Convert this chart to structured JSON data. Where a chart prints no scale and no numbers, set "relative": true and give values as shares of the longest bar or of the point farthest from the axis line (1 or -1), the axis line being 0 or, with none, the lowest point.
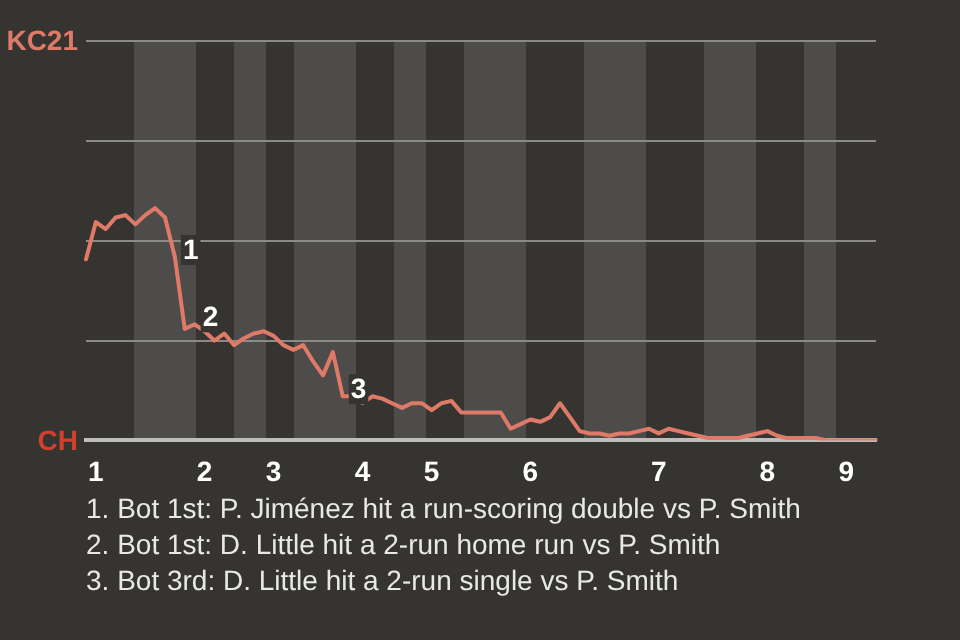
{
  "chart_data": {
    "type": "line",
    "relative": true,
    "categories": [
      null,
      "1",
      null,
      null,
      null,
      null,
      null,
      null,
      null,
      null,
      null,
      null,
      "2",
      null,
      null,
      null,
      null,
      null,
      null,
      "3",
      null,
      null,
      null,
      null,
      null,
      null,
      null,
      null,
      "4",
      null,
      null,
      null,
      null,
      null,
      null,
      "5",
      null,
      null,
      null,
      null,
      null,
      null,
      null,
      null,
      null,
      "6",
      null,
      null,
      null,
      null,
      null,
      null,
      null,
      null,
      null,
      null,
      null,
      null,
      "7",
      null,
      null,
      null,
      null,
      null,
      null,
      null,
      null,
      null,
      null,
      "8",
      null,
      null,
      null,
      null,
      null,
      null,
      null,
      "9",
      null,
      null,
      null
    ],
    "series": [
      {
        "color": "#e07a68",
        "values": [
          0.78,
          0.94,
          0.91,
          0.96,
          0.97,
          0.93,
          0.97,
          1,
          0.96,
          0.79,
          0.48,
          0.5,
          0.47,
          0.43,
          0.46,
          0.41,
          0.44,
          0.46,
          0.47,
          0.45,
          0.41,
          0.39,
          0.41,
          0.34,
          0.28,
          0.38,
          0.19,
          0.19,
          0.16,
          0.19,
          0.18,
          0.16,
          0.14,
          0.16,
          0.16,
          0.13,
          0.16,
          0.17,
          0.12,
          0.12,
          0.12,
          0.12,
          0.12,
          0.05,
          0.07,
          0.09,
          0.08,
          0.1,
          0.16,
          0.1,
          0.04,
          0.03,
          0.03,
          0.02,
          0.03,
          0.03,
          0.04,
          0.05,
          0.03,
          0.05,
          0.04,
          0.03,
          0.02,
          0.01,
          0.01,
          0.01,
          0.01,
          0.02,
          0.03,
          0.04,
          0.02,
          0.01,
          0.01,
          0.01,
          0.01,
          0,
          0,
          0,
          0,
          0,
          0
        ]
      }
    ],
    "ref_lines": [
      {
        "axis": "y",
        "value": 0.431,
        "color": "#8a8a88"
      },
      {
        "axis": "y",
        "value": 0.862,
        "color": "#8a8a88"
      },
      {
        "axis": "y",
        "value": 1.293,
        "color": "#8a8a88"
      },
      {
        "axis": "y",
        "value": 1.724,
        "color": "#8a8a88"
      }
    ],
    "marker": "none",
    "line_style": "solid",
    "legend": false,
    "annotations": [
      "KC21",
      "CH",
      "1",
      "2",
      "3",
      "1. Bot 1st: P. Jiménez hit a run-scoring double vs P. Smith",
      "2. Bot 1st: D. Little hit a 2-run home run vs P. Smith",
      "3. Bot 3rd: D. Little hit a 2-run single vs P. Smith"
    ]
  }
}
